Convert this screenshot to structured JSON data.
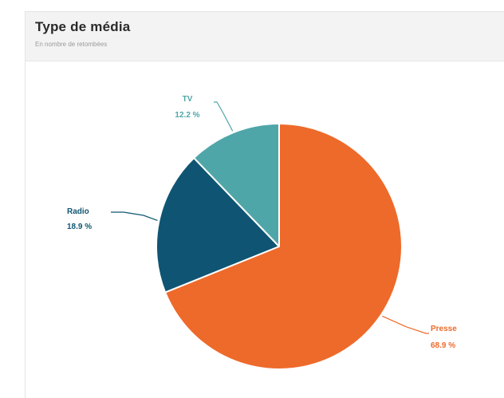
{
  "card": {
    "title": "Type de média",
    "subtitle": "En nombre de retombées"
  },
  "colors": {
    "Presse": "#ee6a2a",
    "Radio": "#0f5573",
    "TV": "#4fa6a8",
    "separator": "#ffffff"
  },
  "chart_data": {
    "type": "pie",
    "title": "Type de média",
    "subtitle": "En nombre de retombées",
    "start_angle_deg": 0,
    "direction": "clockwise",
    "slices": [
      {
        "label": "Presse",
        "value": 68.9,
        "value_label": "68.9 %",
        "color": "#ee6a2a"
      },
      {
        "label": "Radio",
        "value": 18.9,
        "value_label": "18.9 %",
        "color": "#0f5573"
      },
      {
        "label": "TV",
        "value": 12.2,
        "value_label": "12.2 %",
        "color": "#4fa6a8"
      }
    ]
  }
}
